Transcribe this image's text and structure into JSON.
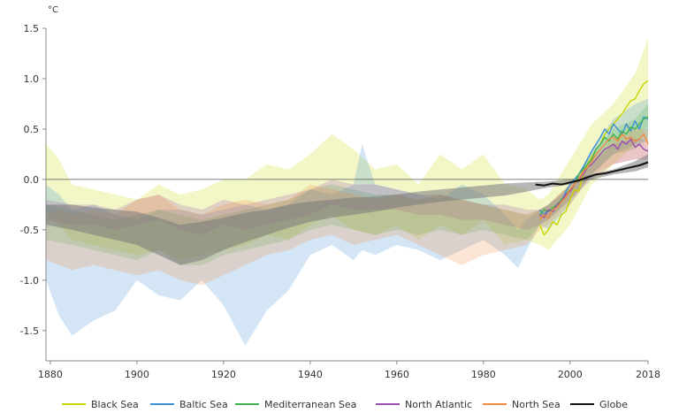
{
  "chart_data": {
    "type": "area",
    "title": "",
    "ylabel": "°C",
    "xlabel": "",
    "xlim": [
      1879,
      2018
    ],
    "ylim": [
      -1.8,
      1.5
    ],
    "xticks": [
      1880,
      1900,
      1920,
      1940,
      1960,
      1980,
      2000,
      2018
    ],
    "xtick_labels": [
      "1880",
      "1900",
      "1920",
      "1940",
      "1960",
      "1980",
      "2000",
      "2018"
    ],
    "yticks": [
      1.5,
      1.0,
      0.5,
      0.0,
      -0.5,
      -1.0,
      -1.5
    ],
    "ytick_labels": [
      "1.5",
      "1.0",
      "0.5",
      "0.0",
      "-0.5",
      "-1.0",
      "-1.5"
    ],
    "legend_position": "bottom",
    "series": [
      {
        "name": "Black Sea",
        "color": "#c8d400",
        "band_x": [
          1879,
          1882,
          1885,
          1890,
          1895,
          1900,
          1905,
          1910,
          1915,
          1920,
          1925,
          1930,
          1935,
          1940,
          1945,
          1950,
          1955,
          1960,
          1965,
          1970,
          1975,
          1980,
          1985,
          1990,
          1993,
          1995,
          2000,
          2005,
          2010,
          2015,
          2018
        ],
        "band_upper": [
          0.35,
          0.2,
          -0.05,
          -0.1,
          -0.15,
          -0.2,
          -0.05,
          -0.15,
          -0.1,
          0.0,
          0.0,
          0.15,
          0.1,
          0.25,
          0.45,
          0.3,
          0.1,
          0.15,
          -0.05,
          0.25,
          0.1,
          0.25,
          -0.05,
          -0.1,
          -0.2,
          -0.15,
          0.2,
          0.55,
          0.75,
          1.05,
          1.4
        ],
        "band_lower": [
          -0.35,
          -0.45,
          -0.6,
          -0.65,
          -0.7,
          -0.75,
          -0.7,
          -0.8,
          -0.75,
          -0.7,
          -0.65,
          -0.55,
          -0.6,
          -0.45,
          -0.35,
          -0.5,
          -0.55,
          -0.45,
          -0.6,
          -0.45,
          -0.55,
          -0.4,
          -0.65,
          -0.6,
          -0.65,
          -0.7,
          -0.45,
          -0.05,
          0.15,
          0.35,
          0.55
        ],
        "line_x": [
          1993,
          1994,
          1995,
          1996,
          1997,
          1998,
          1999,
          2000,
          2001,
          2002,
          2003,
          2004,
          2005,
          2006,
          2007,
          2008,
          2009,
          2010,
          2011,
          2012,
          2013,
          2014,
          2015,
          2016,
          2017,
          2018
        ],
        "line_y": [
          -0.45,
          -0.55,
          -0.5,
          -0.42,
          -0.45,
          -0.35,
          -0.32,
          -0.2,
          -0.1,
          -0.12,
          0.05,
          0.15,
          0.22,
          0.3,
          0.35,
          0.45,
          0.5,
          0.55,
          0.6,
          0.65,
          0.72,
          0.78,
          0.8,
          0.88,
          0.95,
          0.98
        ]
      },
      {
        "name": "Baltic Sea",
        "color": "#3d8fd4",
        "band_x": [
          1879,
          1882,
          1885,
          1890,
          1895,
          1900,
          1905,
          1910,
          1915,
          1920,
          1925,
          1930,
          1935,
          1940,
          1945,
          1950,
          1952,
          1955,
          1960,
          1965,
          1970,
          1975,
          1980,
          1985,
          1988,
          1990,
          1993,
          1995,
          2000,
          2005,
          2010,
          2015,
          2018
        ],
        "band_upper": [
          -0.05,
          -0.15,
          -0.3,
          -0.25,
          -0.35,
          -0.4,
          -0.3,
          -0.3,
          -0.35,
          -0.3,
          -0.25,
          -0.3,
          -0.25,
          -0.1,
          -0.15,
          -0.05,
          0.35,
          -0.05,
          -0.1,
          -0.15,
          -0.2,
          -0.05,
          -0.15,
          -0.35,
          -0.5,
          -0.4,
          -0.3,
          -0.25,
          -0.1,
          0.3,
          0.6,
          0.75,
          0.8
        ],
        "band_lower": [
          -1.0,
          -1.35,
          -1.55,
          -1.4,
          -1.3,
          -1.0,
          -1.15,
          -1.2,
          -1.0,
          -1.25,
          -1.65,
          -1.3,
          -1.1,
          -0.75,
          -0.65,
          -0.8,
          -0.7,
          -0.75,
          -0.65,
          -0.7,
          -0.8,
          -0.7,
          -0.6,
          -0.75,
          -0.88,
          -0.7,
          -0.45,
          -0.5,
          -0.25,
          0.05,
          0.25,
          0.35,
          0.4
        ],
        "line_x": [
          1993,
          1994,
          1995,
          1996,
          1997,
          1998,
          1999,
          2000,
          2001,
          2002,
          2003,
          2004,
          2005,
          2006,
          2007,
          2008,
          2009,
          2010,
          2011,
          2012,
          2013,
          2014,
          2015,
          2016,
          2017,
          2018
        ],
        "line_y": [
          -0.3,
          -0.35,
          -0.3,
          -0.32,
          -0.25,
          -0.22,
          -0.12,
          -0.05,
          0.0,
          0.05,
          0.12,
          0.2,
          0.28,
          0.35,
          0.42,
          0.5,
          0.45,
          0.55,
          0.5,
          0.45,
          0.55,
          0.48,
          0.58,
          0.5,
          0.62,
          0.6
        ]
      },
      {
        "name": "Mediterranean Sea",
        "color": "#3fb34f",
        "band_x": [
          1879,
          1885,
          1890,
          1895,
          1900,
          1905,
          1910,
          1915,
          1920,
          1925,
          1930,
          1935,
          1940,
          1945,
          1950,
          1955,
          1960,
          1965,
          1970,
          1975,
          1980,
          1985,
          1990,
          1993,
          1995,
          2000,
          2005,
          2010,
          2015,
          2018
        ],
        "band_upper": [
          -0.25,
          -0.3,
          -0.35,
          -0.4,
          -0.35,
          -0.3,
          -0.35,
          -0.4,
          -0.35,
          -0.3,
          -0.25,
          -0.2,
          -0.1,
          -0.05,
          -0.1,
          -0.15,
          -0.15,
          -0.2,
          -0.15,
          -0.2,
          -0.25,
          -0.3,
          -0.35,
          -0.3,
          -0.25,
          -0.05,
          0.25,
          0.5,
          0.6,
          0.75
        ],
        "band_lower": [
          -0.6,
          -0.65,
          -0.7,
          -0.75,
          -0.8,
          -0.7,
          -0.85,
          -0.85,
          -0.75,
          -0.7,
          -0.65,
          -0.6,
          -0.5,
          -0.45,
          -0.5,
          -0.55,
          -0.5,
          -0.55,
          -0.5,
          -0.55,
          -0.5,
          -0.55,
          -0.6,
          -0.45,
          -0.4,
          -0.2,
          0.05,
          0.25,
          0.3,
          0.4
        ],
        "line_x": [
          1993,
          1994,
          1995,
          1996,
          1997,
          1998,
          1999,
          2000,
          2001,
          2002,
          2003,
          2004,
          2005,
          2006,
          2007,
          2008,
          2009,
          2010,
          2011,
          2012,
          2013,
          2014,
          2015,
          2016,
          2017,
          2018
        ],
        "line_y": [
          -0.35,
          -0.3,
          -0.32,
          -0.28,
          -0.25,
          -0.2,
          -0.15,
          -0.1,
          -0.05,
          0.05,
          0.1,
          0.15,
          0.2,
          0.3,
          0.35,
          0.42,
          0.38,
          0.45,
          0.4,
          0.48,
          0.45,
          0.52,
          0.5,
          0.55,
          0.6,
          0.62
        ]
      },
      {
        "name": "North Atlantic",
        "color": "#9b4fb0",
        "band_x": [
          1879,
          1885,
          1890,
          1895,
          1900,
          1905,
          1910,
          1915,
          1920,
          1925,
          1930,
          1935,
          1940,
          1945,
          1950,
          1955,
          1960,
          1965,
          1970,
          1975,
          1980,
          1985,
          1990,
          1993,
          1995,
          2000,
          2005,
          2010,
          2015,
          2018
        ],
        "band_upper": [
          -0.2,
          -0.25,
          -0.25,
          -0.3,
          -0.2,
          -0.15,
          -0.25,
          -0.3,
          -0.2,
          -0.25,
          -0.2,
          -0.15,
          -0.1,
          0.0,
          -0.05,
          -0.05,
          -0.1,
          -0.15,
          -0.15,
          -0.2,
          -0.25,
          -0.25,
          -0.3,
          -0.3,
          -0.25,
          -0.05,
          0.15,
          0.35,
          0.4,
          0.4
        ],
        "band_lower": [
          -0.4,
          -0.45,
          -0.45,
          -0.5,
          -0.45,
          -0.4,
          -0.5,
          -0.55,
          -0.45,
          -0.5,
          -0.45,
          -0.4,
          -0.35,
          -0.25,
          -0.3,
          -0.3,
          -0.3,
          -0.35,
          -0.35,
          -0.4,
          -0.4,
          -0.45,
          -0.5,
          -0.45,
          -0.4,
          -0.2,
          0.0,
          0.15,
          0.2,
          0.2
        ],
        "line_x": [
          1993,
          1994,
          1995,
          1996,
          1997,
          1998,
          1999,
          2000,
          2001,
          2002,
          2003,
          2004,
          2005,
          2006,
          2007,
          2008,
          2009,
          2010,
          2011,
          2012,
          2013,
          2014,
          2015,
          2016,
          2017,
          2018
        ],
        "line_y": [
          -0.35,
          -0.38,
          -0.3,
          -0.32,
          -0.25,
          -0.22,
          -0.15,
          -0.12,
          -0.05,
          0.0,
          0.05,
          0.12,
          0.15,
          0.2,
          0.25,
          0.3,
          0.32,
          0.35,
          0.3,
          0.38,
          0.35,
          0.4,
          0.32,
          0.35,
          0.3,
          0.28
        ]
      },
      {
        "name": "North Sea",
        "color": "#f08a3c",
        "band_x": [
          1879,
          1882,
          1885,
          1890,
          1895,
          1900,
          1905,
          1910,
          1915,
          1920,
          1925,
          1930,
          1935,
          1940,
          1945,
          1950,
          1955,
          1960,
          1965,
          1970,
          1975,
          1980,
          1985,
          1990,
          1993,
          1995,
          2000,
          2005,
          2010,
          2015,
          2018
        ],
        "band_upper": [
          -0.35,
          -0.3,
          -0.35,
          -0.3,
          -0.35,
          -0.2,
          -0.15,
          -0.3,
          -0.35,
          -0.25,
          -0.2,
          -0.25,
          -0.2,
          -0.05,
          -0.1,
          -0.15,
          -0.2,
          -0.15,
          -0.2,
          -0.15,
          -0.2,
          -0.25,
          -0.3,
          -0.35,
          -0.3,
          -0.25,
          -0.05,
          0.2,
          0.4,
          0.5,
          0.5
        ],
        "band_lower": [
          -0.8,
          -0.85,
          -0.9,
          -0.85,
          -0.9,
          -0.95,
          -0.9,
          -1.0,
          -1.05,
          -0.95,
          -0.85,
          -0.75,
          -0.7,
          -0.6,
          -0.55,
          -0.65,
          -0.6,
          -0.55,
          -0.65,
          -0.75,
          -0.85,
          -0.75,
          -0.7,
          -0.65,
          -0.5,
          -0.45,
          -0.25,
          0.05,
          0.15,
          0.2,
          0.2
        ],
        "line_x": [
          1993,
          1994,
          1995,
          1996,
          1997,
          1998,
          1999,
          2000,
          2001,
          2002,
          2003,
          2004,
          2005,
          2006,
          2007,
          2008,
          2009,
          2010,
          2011,
          2012,
          2013,
          2014,
          2015,
          2016,
          2017,
          2018
        ],
        "line_y": [
          -0.4,
          -0.35,
          -0.38,
          -0.3,
          -0.28,
          -0.22,
          -0.18,
          -0.1,
          -0.05,
          0.0,
          0.08,
          0.12,
          0.18,
          0.25,
          0.3,
          0.35,
          0.4,
          0.42,
          0.38,
          0.45,
          0.4,
          0.42,
          0.38,
          0.4,
          0.45,
          0.35
        ]
      },
      {
        "name": "Globe",
        "color": "#111111",
        "band_color": "#7a7a7a",
        "band_x": [
          1879,
          1885,
          1890,
          1895,
          1900,
          1905,
          1910,
          1915,
          1920,
          1925,
          1930,
          1935,
          1940,
          1945,
          1950,
          1955,
          1960,
          1965,
          1970,
          1975,
          1980,
          1985,
          1990,
          1995,
          2000,
          2005,
          2010,
          2015,
          2018
        ],
        "band_upper": [
          -0.25,
          -0.25,
          -0.28,
          -0.3,
          -0.32,
          -0.38,
          -0.45,
          -0.42,
          -0.38,
          -0.33,
          -0.3,
          -0.25,
          -0.22,
          -0.2,
          -0.18,
          -0.17,
          -0.15,
          -0.12,
          -0.1,
          -0.08,
          -0.06,
          -0.04,
          -0.03,
          -0.02,
          0.0,
          0.05,
          0.1,
          0.18,
          0.25
        ],
        "band_lower": [
          -0.45,
          -0.5,
          -0.55,
          -0.6,
          -0.65,
          -0.75,
          -0.85,
          -0.8,
          -0.7,
          -0.62,
          -0.55,
          -0.48,
          -0.42,
          -0.38,
          -0.35,
          -0.32,
          -0.28,
          -0.25,
          -0.22,
          -0.2,
          -0.18,
          -0.16,
          -0.12,
          -0.08,
          -0.05,
          0.0,
          0.05,
          0.08,
          0.12
        ],
        "line_x": [
          1992,
          1994,
          1996,
          1998,
          2000,
          2002,
          2004,
          2006,
          2008,
          2010,
          2012,
          2014,
          2016,
          2018
        ],
        "line_y": [
          -0.05,
          -0.06,
          -0.04,
          -0.05,
          -0.03,
          -0.01,
          0.02,
          0.05,
          0.06,
          0.08,
          0.1,
          0.12,
          0.14,
          0.17
        ]
      }
    ]
  }
}
